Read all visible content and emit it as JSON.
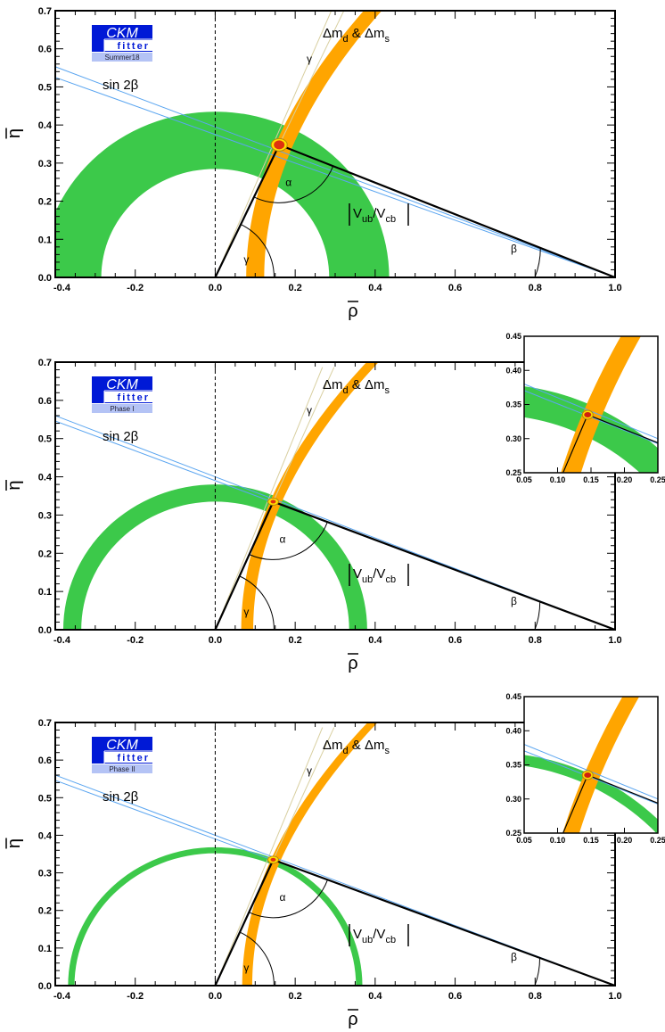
{
  "chart_data": [
    {
      "type": "scatter",
      "logo": {
        "top": "CKM",
        "bottom": "fitter",
        "tag": "Summer18"
      },
      "xlabel": "ρ̄",
      "ylabel": "η̄",
      "xlim": [
        -0.4,
        1.0
      ],
      "ylim": [
        0.0,
        0.7
      ],
      "xticks": [
        "-0.4",
        "-0.2",
        "0.0",
        "0.2",
        "0.4",
        "0.6",
        "0.8",
        "1.0"
      ],
      "yticks": [
        "0.0",
        "0.1",
        "0.2",
        "0.3",
        "0.4",
        "0.5",
        "0.6",
        "0.7"
      ],
      "apex": {
        "rho": 0.16,
        "eta": 0.348
      },
      "green_ring": {
        "r_inner": 0.285,
        "r_outer": 0.435
      },
      "orange_band": {
        "center_a": 0.1,
        "center_b": 0.6,
        "width": 0.045
      },
      "sin2beta_lines": {
        "rho0": 1.0,
        "slope1": -0.395,
        "slope2": -0.375
      },
      "labels": {
        "dm": "Δm",
        "dm_sub1": "d",
        "dm_amp": " & Δm",
        "dm_sub2": "s",
        "gamma": "γ",
        "sin2b": "sin 2β",
        "alpha": "α",
        "beta": "β",
        "vub": "V",
        "vub_sub": "ub",
        "vcb": "/V",
        "vcb_sub": "cb"
      },
      "colors": {
        "green": "#3cc94a",
        "orange": "#ffa500",
        "blue": "#5aa5f0",
        "tan": "#d8cfa0",
        "logo": "#0019d6",
        "logo_tag": "#b4c3f5"
      }
    },
    {
      "type": "scatter",
      "logo": {
        "top": "CKM",
        "bottom": "fitter",
        "tag": "Phase I"
      },
      "xlabel": "ρ̄",
      "ylabel": "η̄",
      "xlim": [
        -0.4,
        1.0
      ],
      "ylim": [
        0.0,
        0.7
      ],
      "xticks": [
        "-0.4",
        "-0.2",
        "0.0",
        "0.2",
        "0.4",
        "0.6",
        "0.8",
        "1.0"
      ],
      "yticks": [
        "0.0",
        "0.1",
        "0.2",
        "0.3",
        "0.4",
        "0.5",
        "0.6",
        "0.7"
      ],
      "apex": {
        "rho": 0.145,
        "eta": 0.335
      },
      "green_ring": {
        "r_inner": 0.335,
        "r_outer": 0.38
      },
      "orange_band": {
        "center_a": 0.08,
        "center_b": 0.64,
        "width": 0.03
      },
      "sin2beta_lines": {
        "rho0": 1.0,
        "slope1": -0.4,
        "slope2": -0.39
      },
      "inset": {
        "xlim": [
          0.05,
          0.25
        ],
        "ylim": [
          0.25,
          0.45
        ],
        "xticks": [
          "0.05",
          "0.10",
          "0.15",
          "0.20",
          "0.25"
        ],
        "yticks": [
          "0.25",
          "0.30",
          "0.35",
          "0.40",
          "0.45"
        ]
      },
      "labels": {
        "dm": "Δm",
        "dm_sub1": "d",
        "dm_amp": " & Δm",
        "dm_sub2": "s",
        "gamma": "γ",
        "sin2b": "sin 2β",
        "alpha": "α",
        "beta": "β",
        "vub": "V",
        "vub_sub": "ub",
        "vcb": "/V",
        "vcb_sub": "cb"
      },
      "colors": {
        "green": "#3cc94a",
        "orange": "#ffa500",
        "blue": "#5aa5f0",
        "tan": "#d8cfa0",
        "logo": "#0019d6",
        "logo_tag": "#b4c3f5"
      }
    },
    {
      "type": "scatter",
      "logo": {
        "top": "CKM",
        "bottom": "fitter",
        "tag": "Phase II"
      },
      "xlabel": "ρ̄",
      "ylabel": "η̄",
      "xlim": [
        -0.4,
        1.0
      ],
      "ylim": [
        0.0,
        0.7
      ],
      "xticks": [
        "-0.4",
        "-0.2",
        "0.0",
        "0.2",
        "0.4",
        "0.6",
        "0.8",
        "1.0"
      ],
      "yticks": [
        "0.0",
        "0.1",
        "0.2",
        "0.3",
        "0.4",
        "0.5",
        "0.6",
        "0.7"
      ],
      "apex": {
        "rho": 0.145,
        "eta": 0.335
      },
      "green_ring": {
        "r_inner": 0.352,
        "r_outer": 0.368
      },
      "orange_band": {
        "center_a": 0.08,
        "center_b": 0.64,
        "width": 0.025
      },
      "sin2beta_lines": {
        "rho0": 1.0,
        "slope1": -0.4,
        "slope2": -0.39
      },
      "inset": {
        "xlim": [
          0.05,
          0.25
        ],
        "ylim": [
          0.25,
          0.45
        ],
        "xticks": [
          "0.05",
          "0.10",
          "0.15",
          "0.20",
          "0.25"
        ],
        "yticks": [
          "0.25",
          "0.30",
          "0.35",
          "0.40",
          "0.45"
        ]
      },
      "labels": {
        "dm": "Δm",
        "dm_sub1": "d",
        "dm_amp": " & Δm",
        "dm_sub2": "s",
        "gamma": "γ",
        "sin2b": "sin 2β",
        "alpha": "α",
        "beta": "β",
        "vub": "V",
        "vub_sub": "ub",
        "vcb": "/V",
        "vcb_sub": "cb"
      },
      "colors": {
        "green": "#3cc94a",
        "orange": "#ffa500",
        "blue": "#5aa5f0",
        "tan": "#d8cfa0",
        "logo": "#0019d6",
        "logo_tag": "#b4c3f5"
      }
    }
  ]
}
